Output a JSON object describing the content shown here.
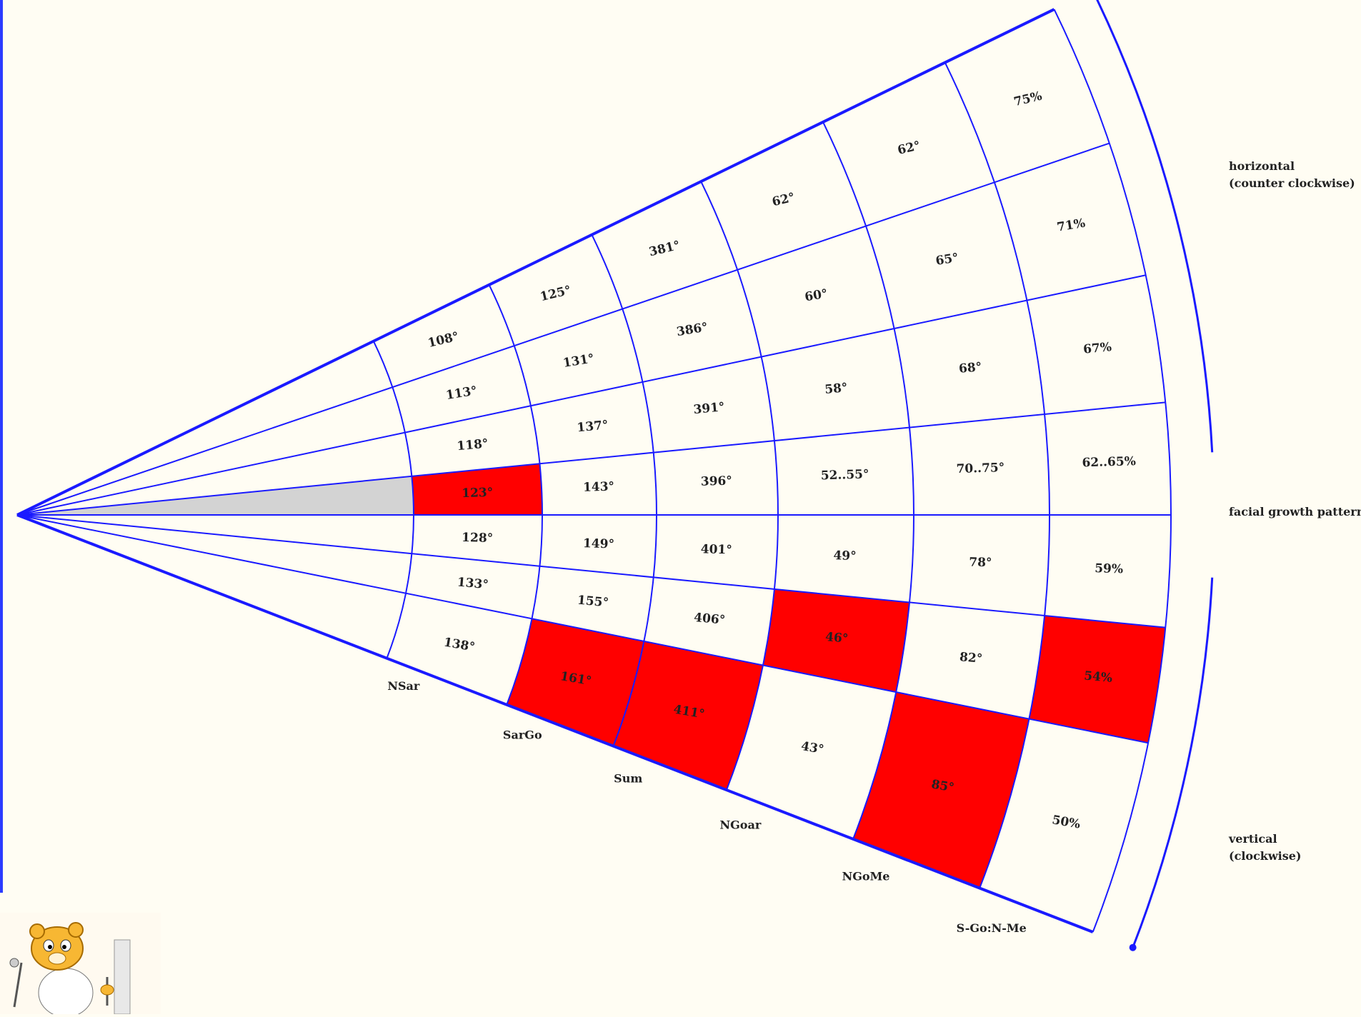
{
  "diagram": {
    "rows": [
      {
        "side": "top",
        "cells": [
          "108°",
          "125°",
          "381°",
          "62°",
          "62°",
          "75%"
        ]
      },
      {
        "side": "top",
        "cells": [
          "113°",
          "131°",
          "386°",
          "60°",
          "65°",
          "71%"
        ]
      },
      {
        "side": "top",
        "cells": [
          "118°",
          "137°",
          "391°",
          "58°",
          "68°",
          "67%"
        ]
      },
      {
        "side": "center",
        "cells": [
          "123°",
          "143°",
          "396°",
          "52..55°",
          "70..75°",
          "62..65%"
        ]
      },
      {
        "side": "bottom",
        "cells": [
          "128°",
          "149°",
          "401°",
          "49°",
          "78°",
          "59%"
        ]
      },
      {
        "side": "bottom",
        "cells": [
          "133°",
          "155°",
          "406°",
          "46°",
          "82°",
          "54%"
        ]
      },
      {
        "side": "bottom",
        "cells": [
          "138°",
          "161°",
          "411°",
          "43°",
          "85°",
          "50%"
        ]
      }
    ],
    "highlighted": [
      [
        3,
        0
      ],
      [
        6,
        1
      ],
      [
        6,
        2
      ],
      [
        5,
        3
      ],
      [
        6,
        4
      ],
      [
        5,
        5
      ]
    ],
    "highlight_color": "#ff0000",
    "line_color": "#1a1aff",
    "wedge_color": "#d3d3d3",
    "column_labels": [
      "NSar",
      "SarGo",
      "Sum",
      "NGoar",
      "NGoMe",
      "S-Go:N-Me"
    ],
    "side_labels": {
      "horizontal_line1": "horizontal",
      "horizontal_line2": "(counter clockwise)",
      "center": "facial growth pattern",
      "vertical_line1": "vertical",
      "vertical_line2": "(clockwise)"
    }
  },
  "mascot": {
    "icon": "hamster-dentist-icon"
  }
}
